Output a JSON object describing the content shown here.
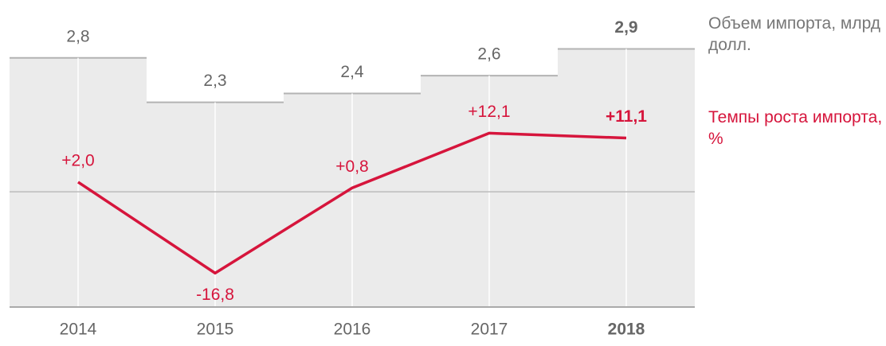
{
  "chart_data": {
    "type": "bar+line",
    "categories": [
      "2014",
      "2015",
      "2016",
      "2017",
      "2018"
    ],
    "series": [
      {
        "name": "Объем импорта, млрд долл.",
        "type": "bar",
        "color": "#ebebeb",
        "edge_color": "#b3b3b3",
        "values": [
          2.8,
          2.3,
          2.4,
          2.6,
          2.9
        ],
        "value_labels": [
          "2,8",
          "2,3",
          "2,4",
          "2,6",
          "2,9"
        ]
      },
      {
        "name": "Темпы роста импорта, %",
        "type": "line",
        "axis": "y2",
        "color": "#d6153c",
        "values": [
          2.0,
          -16.8,
          0.8,
          12.1,
          11.1
        ],
        "value_labels": [
          "+2,0",
          "-16,8",
          "+0,8",
          "+12,1",
          "+11,1"
        ]
      }
    ],
    "ylim": [
      0,
      3.45
    ],
    "y2lim": [
      -23.8,
      39.6
    ],
    "y2ticks": [
      0
    ]
  }
}
